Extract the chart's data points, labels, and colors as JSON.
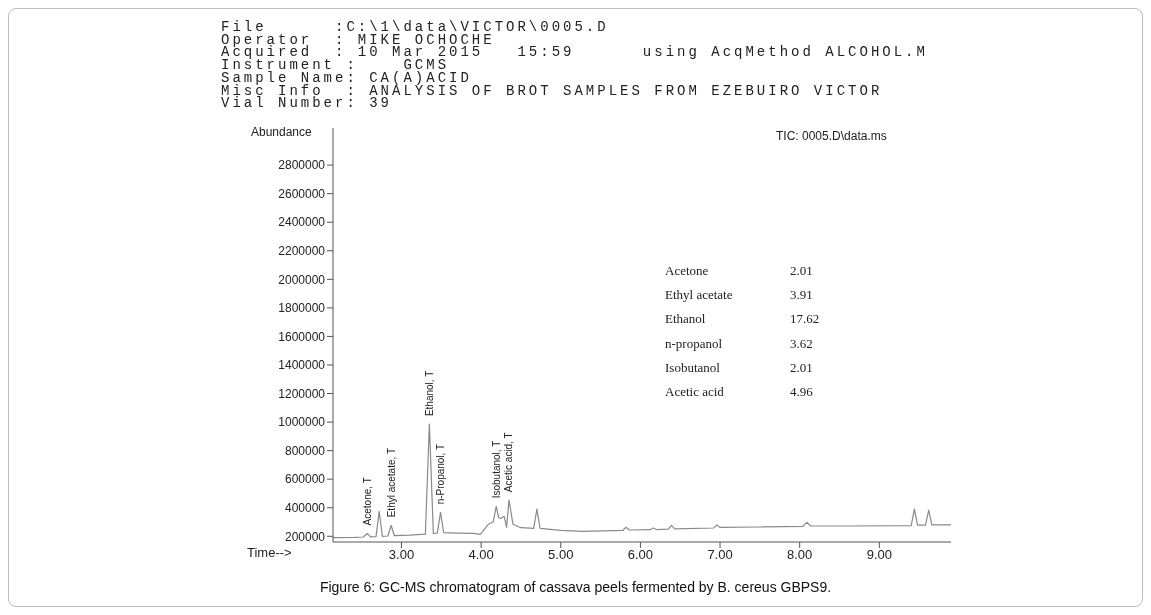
{
  "chart_data": {
    "type": "line",
    "xlabel": "Time-->",
    "ylabel": "Abundance",
    "x": [
      2.14,
      2.4,
      2.52,
      2.57,
      2.61,
      2.68,
      2.72,
      2.76,
      2.83,
      2.87,
      2.91,
      3.1,
      3.3,
      3.35,
      3.4,
      3.45,
      3.49,
      3.53,
      3.7,
      3.9,
      3.99,
      4.09,
      4.15,
      4.19,
      4.22,
      4.25,
      4.29,
      4.32,
      4.35,
      4.4,
      4.5,
      4.66,
      4.7,
      4.74,
      5.0,
      5.27,
      5.78,
      5.82,
      5.86,
      6.12,
      6.16,
      6.2,
      6.35,
      6.39,
      6.43,
      6.92,
      6.96,
      7.0,
      7.5,
      8.04,
      8.09,
      8.14,
      8.6,
      9.4,
      9.44,
      9.48,
      9.58,
      9.62,
      9.66,
      9.9
    ],
    "series": [
      {
        "color": "#8a8a8a",
        "values": [
          190000,
          192000,
          195000,
          220000,
          196000,
          198000,
          375000,
          200000,
          202000,
          277000,
          204000,
          208000,
          215000,
          986000,
          220000,
          222000,
          368000,
          225000,
          222000,
          220000,
          214000,
          284000,
          300000,
          410000,
          330000,
          326000,
          340000,
          263000,
          453000,
          284000,
          260000,
          255000,
          390000,
          255000,
          242000,
          235000,
          242000,
          263000,
          244000,
          246000,
          258000,
          247000,
          250000,
          277000,
          252000,
          258000,
          280000,
          262000,
          265000,
          270000,
          298000,
          272000,
          272000,
          275000,
          390000,
          278000,
          278000,
          383000,
          280000,
          280000
        ]
      }
    ],
    "xlim": [
      2.14,
      9.9
    ],
    "ylim": [
      160000,
      3060000
    ],
    "xticks": [
      {
        "value": 3,
        "label": "3.00"
      },
      {
        "value": 4,
        "label": "4.00"
      },
      {
        "value": 5,
        "label": "5.00"
      },
      {
        "value": 6,
        "label": "6.00"
      },
      {
        "value": 7,
        "label": "7.00"
      },
      {
        "value": 8,
        "label": "8.00"
      },
      {
        "value": 9,
        "label": "9.00"
      }
    ],
    "yticks": [
      200000,
      400000,
      600000,
      800000,
      1000000,
      1200000,
      1400000,
      1600000,
      1800000,
      2000000,
      2200000,
      2400000,
      2600000,
      2800000
    ],
    "grid": false,
    "marker": "none",
    "line_style": "solid",
    "legend": false,
    "annotations": [
      "File      :C:\\1\\data\\VICTOR\\0005.D",
      "Operator  : MIKE OCHOCHE",
      "Acquired  : 10 Mar 2015   15:59      using AcqMethod ALCOHOL.M",
      "Instrument :    GCMS",
      "Sample Name: CA(A)ACID",
      "Misc Info  : ANALYSIS OF BROT SAMPLES FROM EZEBUIRO VICTOR",
      "Vial Number: 39",
      "TIC: 0005.D\\data.ms",
      "Acetone",
      "2.01",
      "Ethyl acetate",
      "3.91",
      "Ethanol",
      "17.62",
      "n-propanol",
      "3.62",
      "Isobutanol",
      "2.01",
      "Acetic acid",
      "4.96",
      {
        "text": "Acetone, T",
        "x": 2.57,
        "y": 220000
      },
      {
        "text": "Ethyl acetate, T",
        "x": 2.87,
        "y": 277000
      },
      {
        "text": "Ethanol, T",
        "x": 3.35,
        "y": 986000
      },
      {
        "text": "n-Propanol, T",
        "x": 3.49,
        "y": 368000
      },
      {
        "text": "Isobutanol, T",
        "x": 4.19,
        "y": 410000
      },
      {
        "text": "Acetic acid, T",
        "x": 4.35,
        "y": 453000
      },
      "Figure 6: GC-MS chromatogram of cassava peels fermented by B. cereus GBPS9."
    ]
  }
}
